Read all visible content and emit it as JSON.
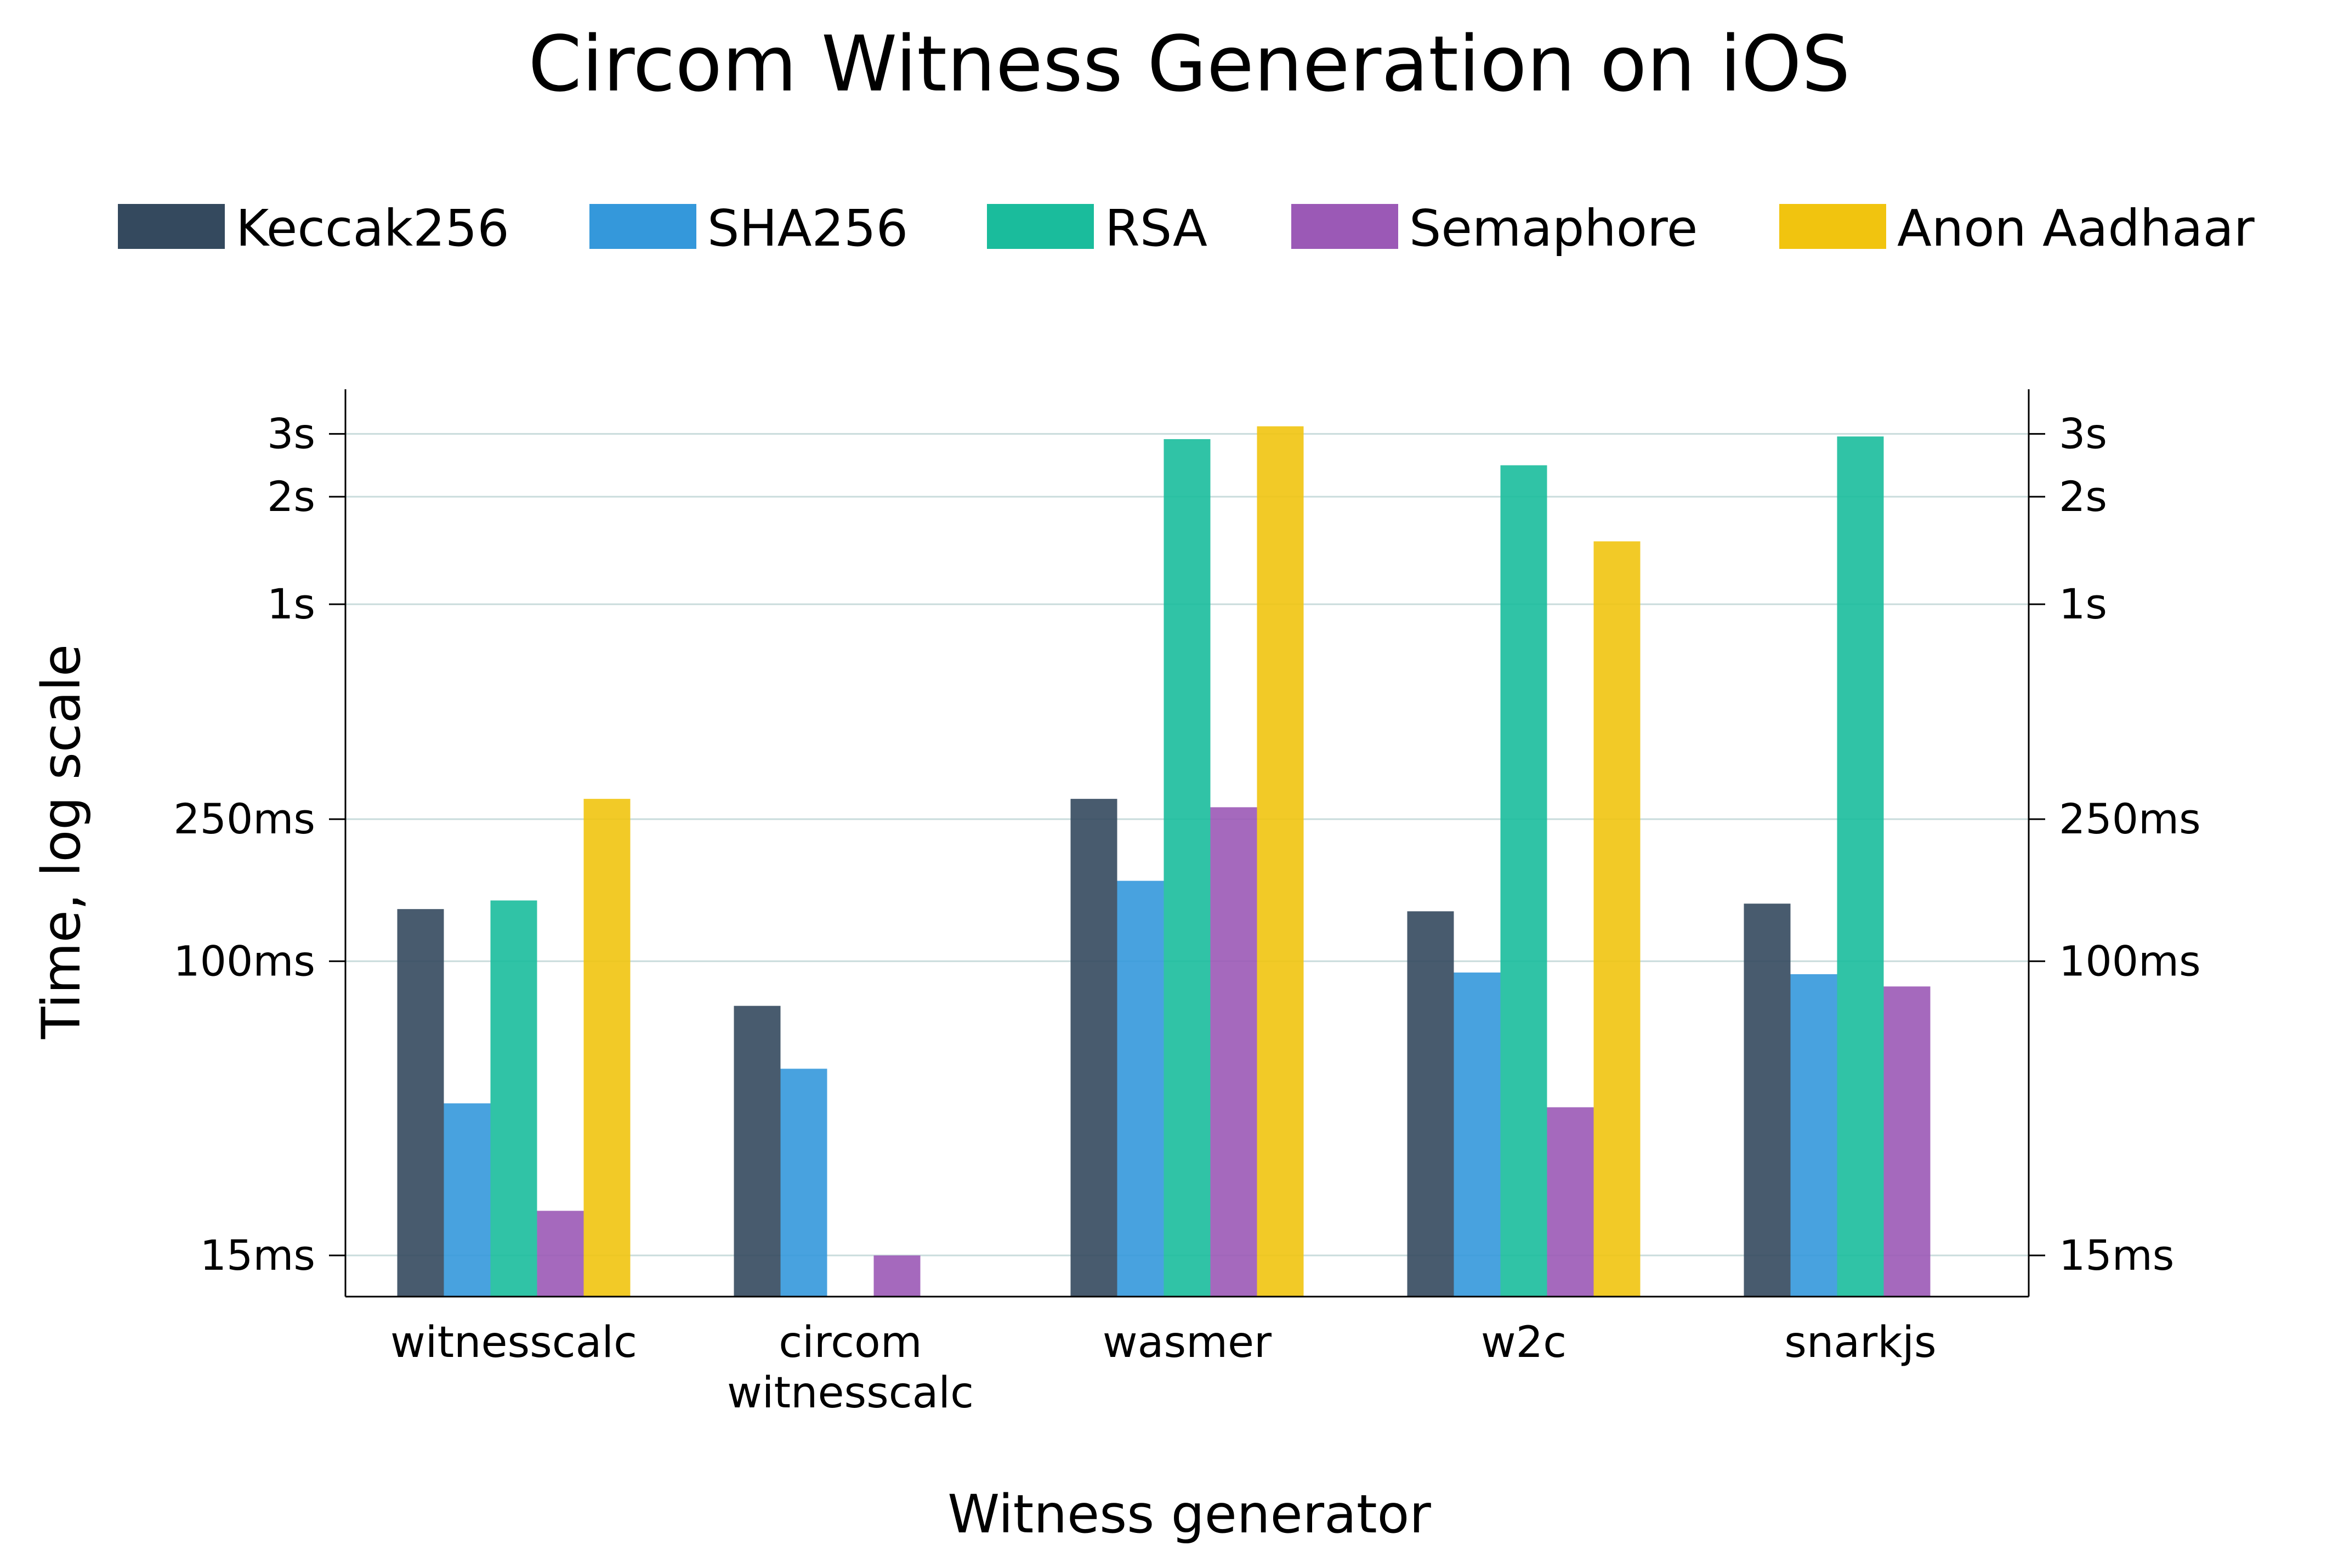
{
  "chart_data": {
    "type": "bar",
    "title": "Circom Witness Generation on iOS",
    "xlabel": "Witness generator",
    "ylabel": "Time, log scale",
    "y_scale": "log",
    "ylim_ms": [
      11.5,
      4000
    ],
    "grid": true,
    "legend_position": "top",
    "categories": [
      {
        "lines": [
          "witnesscalc"
        ]
      },
      {
        "lines": [
          "circom",
          "witnesscalc"
        ]
      },
      {
        "lines": [
          "wasmer"
        ]
      },
      {
        "lines": [
          "w2c"
        ]
      },
      {
        "lines": [
          "snarkjs"
        ]
      }
    ],
    "y_ticks": [
      {
        "value_ms": 15,
        "label": "15ms"
      },
      {
        "value_ms": 100,
        "label": "100ms"
      },
      {
        "value_ms": 250,
        "label": "250ms"
      },
      {
        "value_ms": 1000,
        "label": "1s"
      },
      {
        "value_ms": 2000,
        "label": "2s"
      },
      {
        "value_ms": 3000,
        "label": "3s"
      }
    ],
    "series": [
      {
        "name": "Keccak256",
        "color": "#34495e",
        "values_ms": [
          140,
          75,
          285,
          138,
          145
        ]
      },
      {
        "name": "SHA256",
        "color": "#3498db",
        "values_ms": [
          40,
          50,
          168,
          93,
          92
        ]
      },
      {
        "name": "RSA",
        "color": "#1abc9c",
        "values_ms": [
          148,
          null,
          2900,
          2450,
          2950
        ]
      },
      {
        "name": "Semaphore",
        "color": "#9b59b6",
        "values_ms": [
          20,
          15,
          270,
          39,
          85
        ]
      },
      {
        "name": "Anon Aadhaar",
        "color": "#f1c40f",
        "values_ms": [
          285,
          null,
          3150,
          1500,
          null
        ]
      }
    ]
  }
}
